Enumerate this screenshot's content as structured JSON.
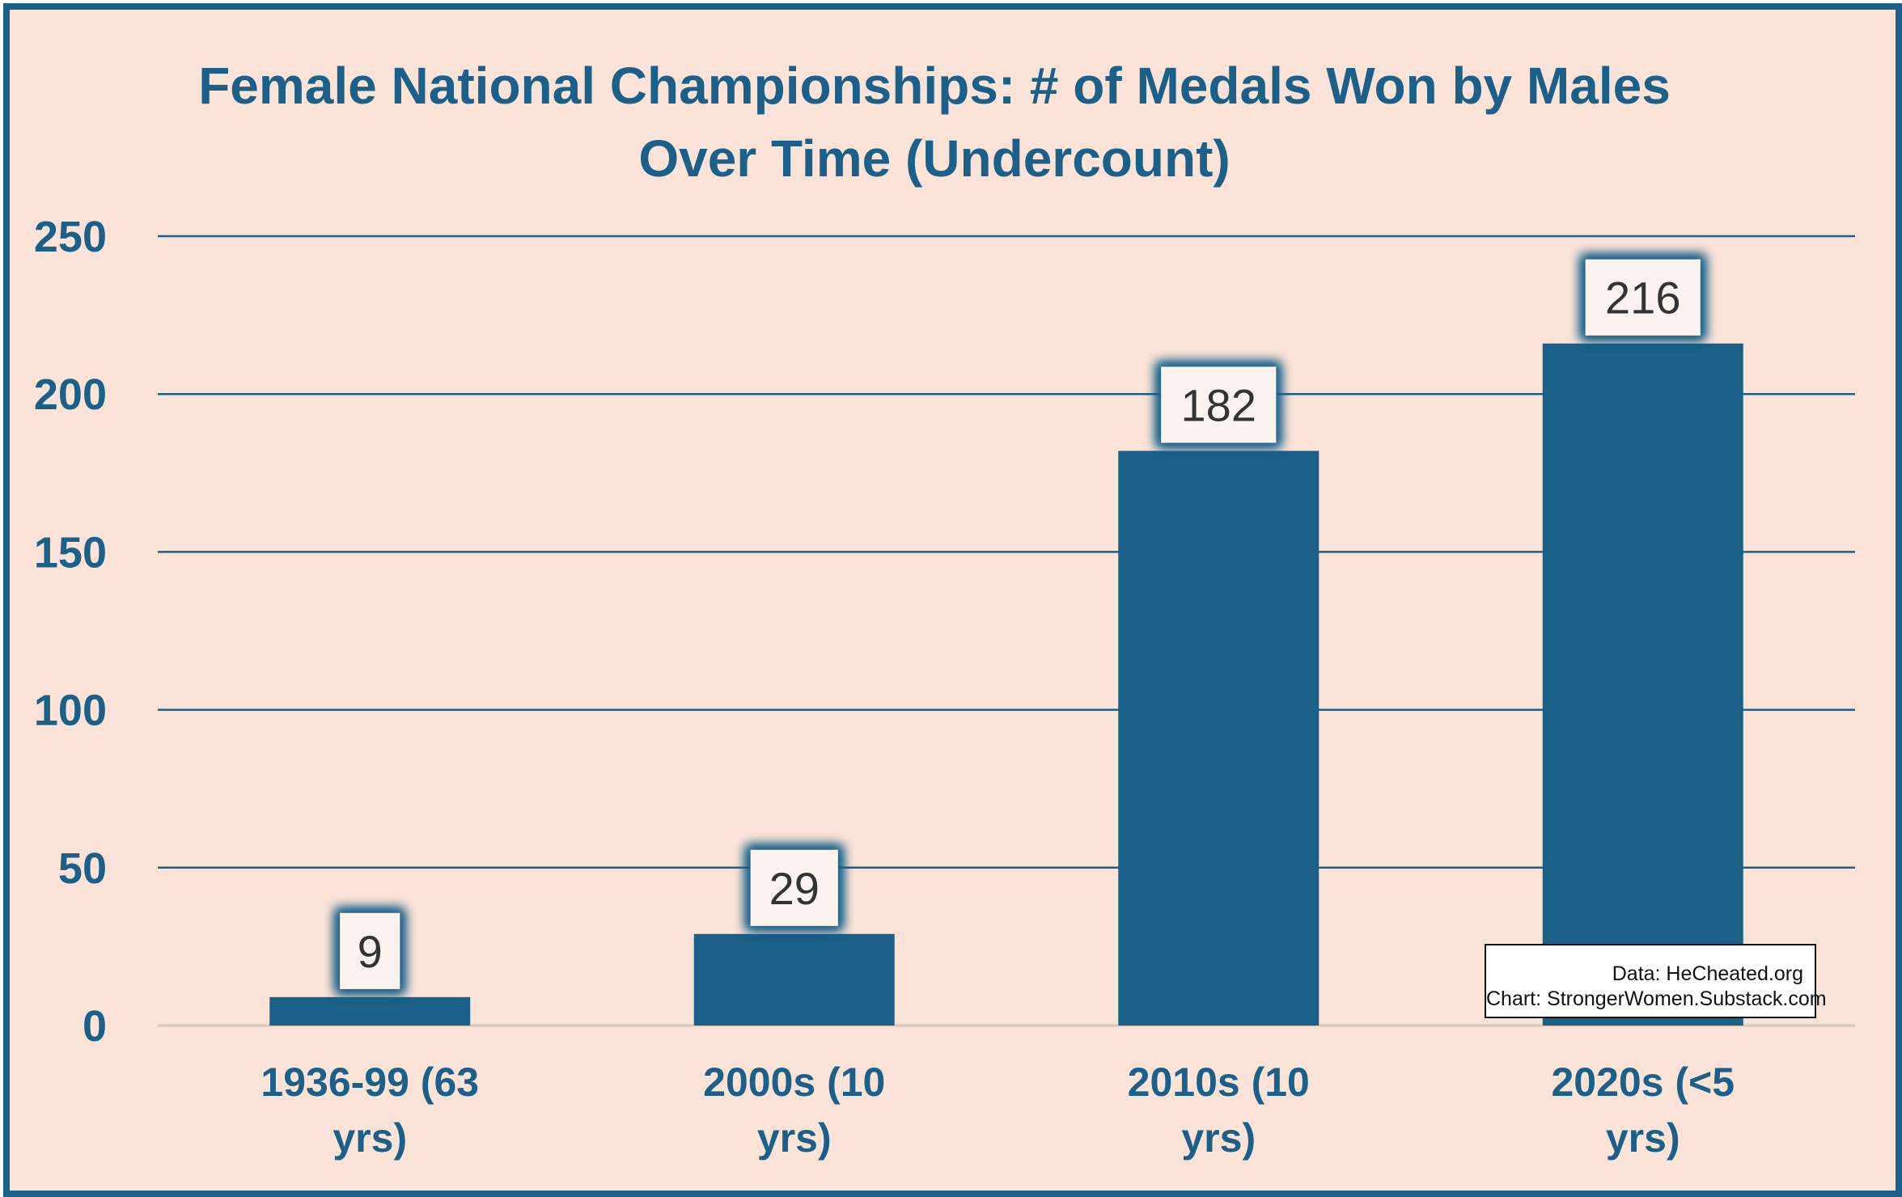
{
  "chart_data": {
    "type": "bar",
    "title_lines": [
      "Female National Championships: # of Medals Won by Males",
      "Over Time (Undercount)"
    ],
    "categories": [
      [
        "1936-99 (63",
        "yrs)"
      ],
      [
        "2000s (10",
        "yrs)"
      ],
      [
        "2010s (10",
        "yrs)"
      ],
      [
        "2020s (<5",
        "yrs)"
      ]
    ],
    "values": [
      9,
      29,
      182,
      216
    ],
    "ylim": [
      0,
      250
    ],
    "yticks": [
      0,
      50,
      100,
      150,
      200,
      250
    ],
    "grid": true,
    "legend": "none",
    "colors": {
      "bar": "#1a6088",
      "grid": "#1a6088",
      "background": "#fbe3d8",
      "frame": "#1a6088",
      "label_glow": "#1a6088"
    }
  },
  "source_box": {
    "line1": "Data: HeCheated.org",
    "line2": "Chart: StrongerWomen.Substack.com"
  }
}
